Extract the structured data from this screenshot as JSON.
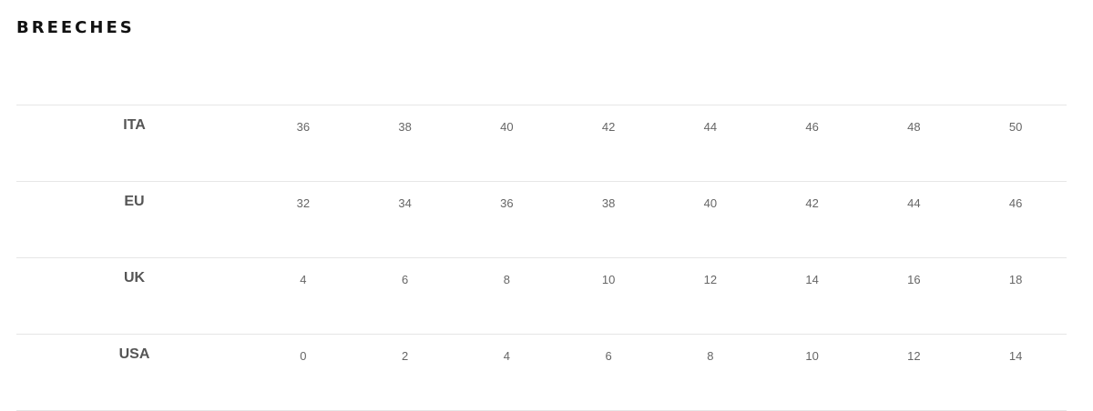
{
  "title": "BREECHES",
  "rows": [
    {
      "label": "ITA",
      "values": [
        "36",
        "38",
        "40",
        "42",
        "44",
        "46",
        "48",
        "50"
      ]
    },
    {
      "label": "EU",
      "values": [
        "32",
        "34",
        "36",
        "38",
        "40",
        "42",
        "44",
        "46"
      ]
    },
    {
      "label": "UK",
      "values": [
        "4",
        "6",
        "8",
        "10",
        "12",
        "14",
        "16",
        "18"
      ]
    },
    {
      "label": "USA",
      "values": [
        "0",
        "2",
        "4",
        "6",
        "8",
        "10",
        "12",
        "14"
      ]
    }
  ]
}
